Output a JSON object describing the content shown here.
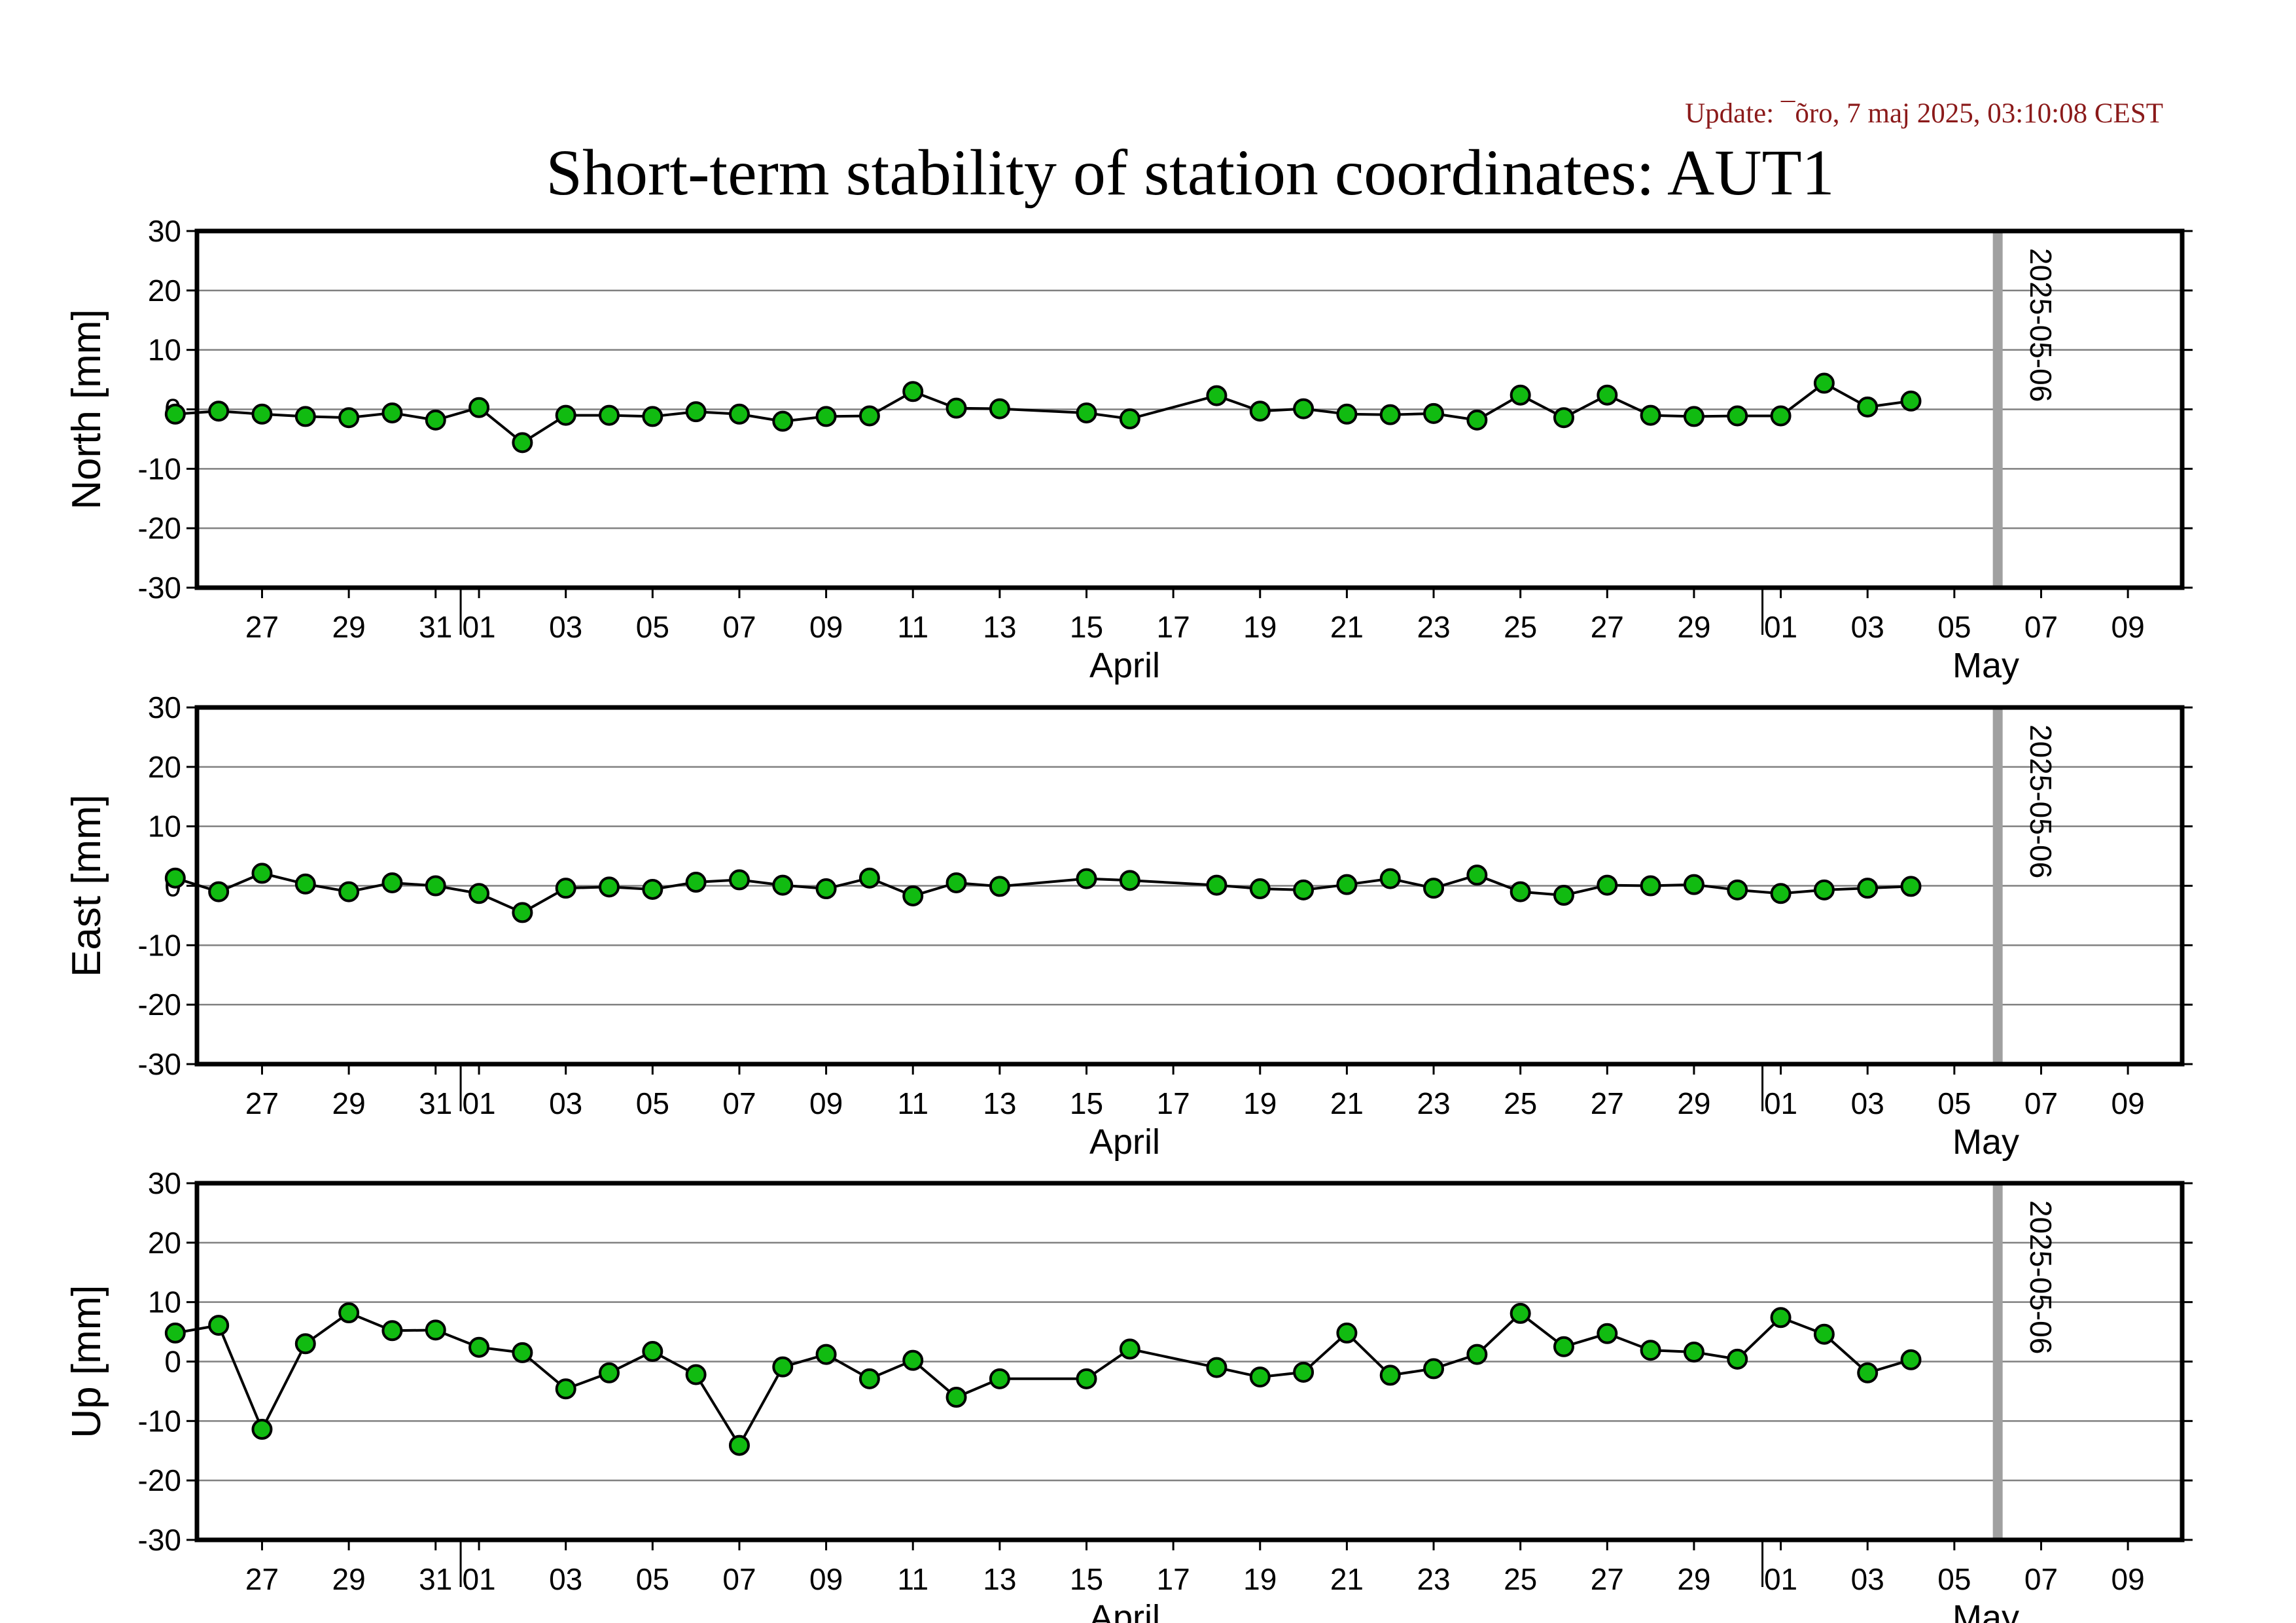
{
  "update_text": "Update: ¯õro, 7 maj 2025, 03:10:08 CEST",
  "title": "Short-term stability of station coordinates: AUT1",
  "chart_data": {
    "type": "line",
    "x_axis": {
      "range": [
        "2025-03-25T12:00",
        "2025-05-10T06:00"
      ],
      "tick_labels": [
        "27",
        "29",
        "31",
        "01",
        "03",
        "05",
        "07",
        "09",
        "11",
        "13",
        "15",
        "17",
        "19",
        "21",
        "23",
        "25",
        "27",
        "29",
        "01",
        "03",
        "05",
        "07",
        "09"
      ],
      "month_labels": [
        "April",
        "May"
      ]
    },
    "reference_line": {
      "date": "2025-05-06",
      "label": "2025-05-06",
      "color": "#a0a0a0"
    },
    "marker_color": "#11bb11",
    "line_color": "#000000",
    "grid": true,
    "dates": [
      "2025-03-25",
      "2025-03-26",
      "2025-03-27",
      "2025-03-28",
      "2025-03-29",
      "2025-03-30",
      "2025-03-31",
      "2025-04-01",
      "2025-04-02",
      "2025-04-03",
      "2025-04-04",
      "2025-04-05",
      "2025-04-06",
      "2025-04-07",
      "2025-04-08",
      "2025-04-09",
      "2025-04-10",
      "2025-04-11",
      "2025-04-12",
      "2025-04-13",
      "2025-04-15",
      "2025-04-16",
      "2025-04-18",
      "2025-04-19",
      "2025-04-20",
      "2025-04-21",
      "2025-04-22",
      "2025-04-23",
      "2025-04-24",
      "2025-04-25",
      "2025-04-26",
      "2025-04-27",
      "2025-04-28",
      "2025-04-29",
      "2025-04-30",
      "2025-05-01",
      "2025-05-02",
      "2025-05-03",
      "2025-05-04"
    ],
    "series": [
      {
        "name": "North",
        "ylabel": "North [mm]",
        "ylim": [
          -30,
          30
        ],
        "yticks": [
          30,
          20,
          10,
          0,
          -10,
          -20,
          -30
        ],
        "values": [
          -0.8,
          -0.3,
          -0.8,
          -1.2,
          -1.4,
          -0.6,
          -1.8,
          0.3,
          -5.6,
          -1.0,
          -1.0,
          -1.2,
          -0.4,
          -0.8,
          -2.0,
          -1.2,
          -1.1,
          3.0,
          0.2,
          0.1,
          -0.6,
          -1.6,
          2.3,
          -0.3,
          0.1,
          -0.8,
          -0.9,
          -0.7,
          -1.8,
          2.4,
          -1.4,
          2.4,
          -1.0,
          -1.2,
          -1.1,
          -1.1,
          4.4,
          0.4,
          1.4
        ]
      },
      {
        "name": "East",
        "ylabel": "East [mm]",
        "ylim": [
          -30,
          30
        ],
        "yticks": [
          30,
          20,
          10,
          0,
          -10,
          -20,
          -30
        ],
        "values": [
          1.3,
          -1.0,
          2.1,
          0.3,
          -1.0,
          0.5,
          0.0,
          -1.3,
          -4.5,
          -0.4,
          -0.2,
          -0.6,
          0.6,
          1.0,
          0.1,
          -0.5,
          1.3,
          -1.7,
          0.5,
          -0.1,
          1.2,
          0.9,
          0.1,
          -0.5,
          -0.7,
          0.2,
          1.2,
          -0.4,
          1.8,
          -1.0,
          -1.6,
          0.1,
          0.0,
          0.2,
          -0.7,
          -1.3,
          -0.7,
          -0.4,
          -0.1
        ]
      },
      {
        "name": "Up",
        "ylabel": "Up [mm]",
        "ylim": [
          -30,
          30
        ],
        "yticks": [
          30,
          20,
          10,
          0,
          -10,
          -20,
          -30
        ],
        "values": [
          4.8,
          6.1,
          -11.4,
          3.0,
          8.2,
          5.2,
          5.3,
          2.4,
          1.5,
          -4.6,
          -1.9,
          1.7,
          -2.2,
          -14.1,
          -0.9,
          1.2,
          -2.9,
          0.2,
          -6.0,
          -2.9,
          -2.9,
          2.1,
          -1.0,
          -2.6,
          -1.8,
          4.8,
          -2.3,
          -1.2,
          1.2,
          8.1,
          2.5,
          4.7,
          1.9,
          1.6,
          0.4,
          7.4,
          4.6,
          -1.9,
          0.3
        ]
      }
    ]
  }
}
